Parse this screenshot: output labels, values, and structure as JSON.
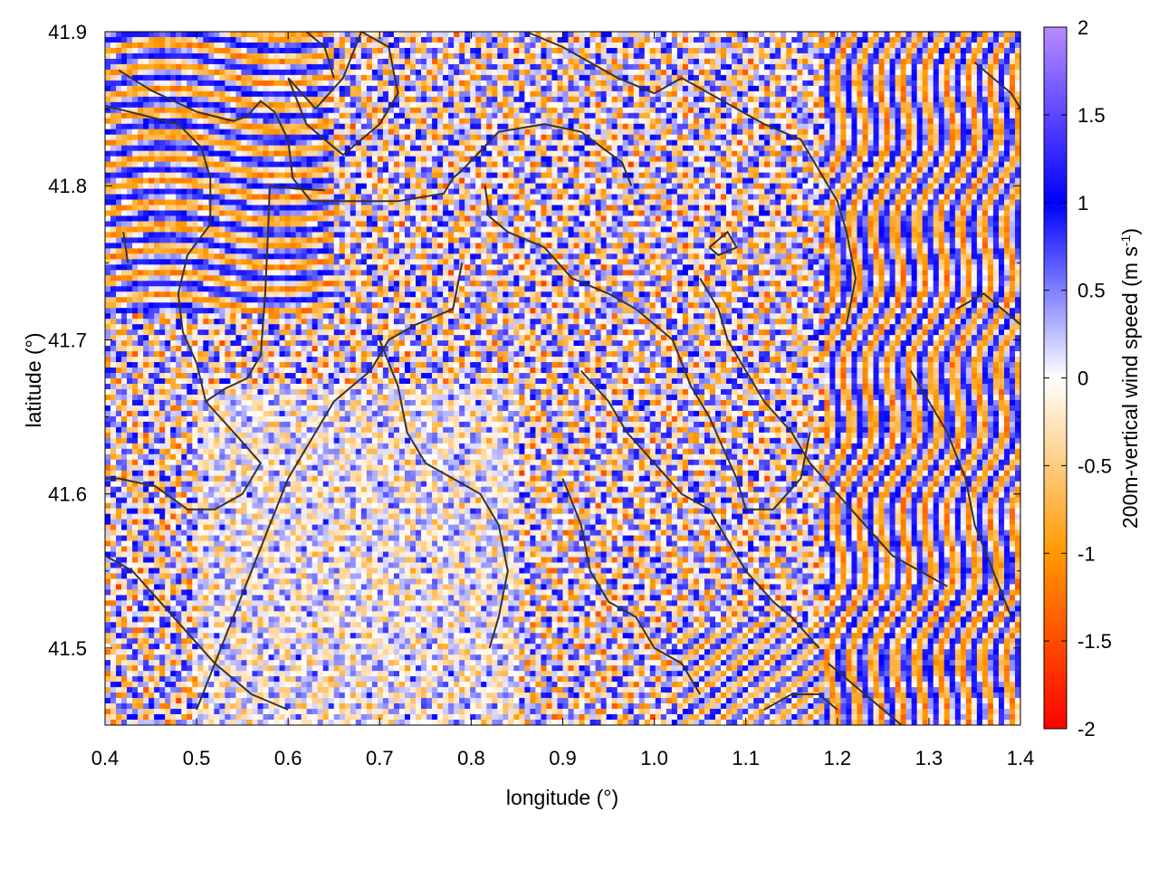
{
  "chart_data": {
    "type": "heatmap",
    "title": "",
    "xlabel": "longitude (°)",
    "ylabel": "latitude (°)",
    "colorbar_label_main": "200m-vertical wind speed (m s",
    "colorbar_label_exp": "-1",
    "colorbar_label_close": ")",
    "xlim": [
      0.4,
      1.4
    ],
    "ylim": [
      41.45,
      41.9
    ],
    "zlim": [
      -2,
      2
    ],
    "x_ticks": [
      0.4,
      0.5,
      0.6,
      0.7,
      0.8,
      0.9,
      1.0,
      1.1,
      1.2,
      1.3,
      1.4
    ],
    "x_tick_labels": [
      "0.4",
      "0.5",
      "0.6",
      "0.7",
      "0.8",
      "0.9",
      "1.0",
      "1.1",
      "1.2",
      "1.3",
      "1.4"
    ],
    "y_ticks": [
      41.5,
      41.6,
      41.7,
      41.8,
      41.9
    ],
    "y_tick_labels": [
      "41.5",
      "41.6",
      "41.7",
      "41.8",
      "41.9"
    ],
    "colorbar_ticks": [
      2,
      1.5,
      1,
      0.5,
      0,
      -0.5,
      -1,
      -1.5,
      -2
    ],
    "colorbar_tick_labels": [
      "2",
      "1.5",
      "1",
      "0.5",
      "0",
      "-0.5",
      "-1",
      "-1.5",
      "-2"
    ],
    "colorscale": [
      {
        "value": -2,
        "color": "#ff0000"
      },
      {
        "value": -1,
        "color": "#ff9900"
      },
      {
        "value": 0,
        "color": "#ffffff"
      },
      {
        "value": 1,
        "color": "#0000ff"
      },
      {
        "value": 2,
        "color": "#b88cff"
      }
    ],
    "grid": false,
    "legend": "colorbar-right",
    "boundary_color": "#333333",
    "boundaries": [
      [
        [
          0.415,
          41.875
        ],
        [
          0.45,
          41.862
        ],
        [
          0.5,
          41.848
        ],
        [
          0.54,
          41.842
        ],
        [
          0.555,
          41.845
        ],
        [
          0.57,
          41.855
        ],
        [
          0.585,
          41.848
        ],
        [
          0.6,
          41.83
        ],
        [
          0.605,
          41.805
        ],
        [
          0.625,
          41.79
        ],
        [
          0.67,
          41.79
        ],
        [
          0.72,
          41.79
        ],
        [
          0.77,
          41.795
        ],
        [
          0.78,
          41.805
        ],
        [
          0.79,
          41.81
        ],
        [
          0.83,
          41.835
        ],
        [
          0.88,
          41.84
        ],
        [
          0.92,
          41.835
        ],
        [
          0.965,
          41.815
        ],
        [
          0.975,
          41.8
        ]
      ],
      [
        [
          0.4,
          41.852
        ],
        [
          0.44,
          41.846
        ],
        [
          0.48,
          41.84
        ],
        [
          0.505,
          41.825
        ],
        [
          0.515,
          41.805
        ],
        [
          0.515,
          41.775
        ],
        [
          0.49,
          41.755
        ],
        [
          0.48,
          41.73
        ],
        [
          0.485,
          41.705
        ],
        [
          0.5,
          41.685
        ],
        [
          0.51,
          41.66
        ],
        [
          0.53,
          41.668
        ],
        [
          0.555,
          41.675
        ],
        [
          0.57,
          41.69
        ],
        [
          0.575,
          41.73
        ],
        [
          0.578,
          41.77
        ],
        [
          0.58,
          41.8
        ]
      ],
      [
        [
          0.58,
          41.8
        ],
        [
          0.61,
          41.798
        ],
        [
          0.64,
          41.797
        ]
      ],
      [
        [
          0.51,
          41.66
        ],
        [
          0.545,
          41.637
        ],
        [
          0.57,
          41.62
        ],
        [
          0.55,
          41.6
        ],
        [
          0.52,
          41.59
        ],
        [
          0.49,
          41.59
        ],
        [
          0.455,
          41.605
        ],
        [
          0.415,
          41.61
        ],
        [
          0.4,
          41.61
        ]
      ],
      [
        [
          0.6,
          41.87
        ],
        [
          0.63,
          41.85
        ],
        [
          0.66,
          41.87
        ],
        [
          0.68,
          41.9
        ],
        [
          0.71,
          41.89
        ],
        [
          0.72,
          41.86
        ],
        [
          0.7,
          41.84
        ],
        [
          0.68,
          41.83
        ],
        [
          0.66,
          41.82
        ],
        [
          0.64,
          41.83
        ],
        [
          0.62,
          41.84
        ],
        [
          0.6,
          41.87
        ]
      ],
      [
        [
          0.62,
          41.9
        ],
        [
          0.64,
          41.89
        ],
        [
          0.65,
          41.87
        ]
      ],
      [
        [
          0.815,
          41.8
        ],
        [
          0.82,
          41.78
        ],
        [
          0.84,
          41.77
        ],
        [
          0.88,
          41.76
        ],
        [
          0.91,
          41.74
        ],
        [
          0.95,
          41.73
        ],
        [
          0.98,
          41.72
        ],
        [
          1.02,
          41.7
        ],
        [
          1.04,
          41.67
        ],
        [
          1.06,
          41.65
        ],
        [
          1.075,
          41.63
        ],
        [
          1.09,
          41.61
        ],
        [
          1.1,
          41.59
        ],
        [
          1.13,
          41.59
        ],
        [
          1.16,
          41.61
        ],
        [
          1.17,
          41.64
        ]
      ],
      [
        [
          0.86,
          41.9
        ],
        [
          0.9,
          41.89
        ],
        [
          0.93,
          41.88
        ],
        [
          0.96,
          41.87
        ],
        [
          1.0,
          41.86
        ],
        [
          1.03,
          41.87
        ],
        [
          1.06,
          41.86
        ],
        [
          1.09,
          41.85
        ],
        [
          1.12,
          41.84
        ],
        [
          1.16,
          41.83
        ],
        [
          1.18,
          41.81
        ],
        [
          1.2,
          41.79
        ],
        [
          1.21,
          41.77
        ],
        [
          1.22,
          41.74
        ],
        [
          1.21,
          41.71
        ]
      ],
      [
        [
          0.79,
          41.75
        ],
        [
          0.78,
          41.72
        ],
        [
          0.74,
          41.71
        ],
        [
          0.71,
          41.7
        ],
        [
          0.69,
          41.68
        ],
        [
          0.65,
          41.66
        ],
        [
          0.62,
          41.63
        ],
        [
          0.6,
          41.61
        ],
        [
          0.58,
          41.58
        ],
        [
          0.56,
          41.55
        ],
        [
          0.54,
          41.52
        ],
        [
          0.52,
          41.49
        ],
        [
          0.5,
          41.46
        ]
      ],
      [
        [
          0.7,
          41.7
        ],
        [
          0.72,
          41.67
        ],
        [
          0.73,
          41.64
        ],
        [
          0.75,
          41.62
        ],
        [
          0.78,
          41.61
        ],
        [
          0.81,
          41.6
        ],
        [
          0.83,
          41.58
        ],
        [
          0.84,
          41.55
        ],
        [
          0.83,
          41.52
        ],
        [
          0.82,
          41.5
        ]
      ],
      [
        [
          0.9,
          41.61
        ],
        [
          0.92,
          41.58
        ],
        [
          0.93,
          41.55
        ],
        [
          0.95,
          41.53
        ],
        [
          0.98,
          41.52
        ],
        [
          1.0,
          41.5
        ],
        [
          1.03,
          41.49
        ],
        [
          1.05,
          41.47
        ]
      ],
      [
        [
          0.92,
          41.68
        ],
        [
          0.95,
          41.66
        ],
        [
          0.97,
          41.64
        ],
        [
          1.0,
          41.62
        ],
        [
          1.03,
          41.6
        ],
        [
          1.06,
          41.59
        ],
        [
          1.08,
          41.57
        ],
        [
          1.1,
          41.55
        ],
        [
          1.13,
          41.53
        ],
        [
          1.15,
          41.52
        ],
        [
          1.18,
          41.5
        ]
      ],
      [
        [
          1.06,
          41.76
        ],
        [
          1.08,
          41.77
        ],
        [
          1.09,
          41.76
        ],
        [
          1.07,
          41.755
        ],
        [
          1.06,
          41.76
        ]
      ],
      [
        [
          1.05,
          41.74
        ],
        [
          1.07,
          41.72
        ],
        [
          1.08,
          41.7
        ],
        [
          1.1,
          41.68
        ],
        [
          1.12,
          41.66
        ],
        [
          1.15,
          41.64
        ],
        [
          1.17,
          41.62
        ],
        [
          1.2,
          41.6
        ],
        [
          1.23,
          41.58
        ],
        [
          1.26,
          41.56
        ],
        [
          1.29,
          41.55
        ],
        [
          1.32,
          41.54
        ]
      ],
      [
        [
          1.33,
          41.72
        ],
        [
          1.36,
          41.73
        ],
        [
          1.38,
          41.72
        ],
        [
          1.4,
          41.71
        ]
      ],
      [
        [
          1.28,
          41.68
        ],
        [
          1.3,
          41.66
        ],
        [
          1.32,
          41.64
        ],
        [
          1.34,
          41.61
        ],
        [
          1.35,
          41.58
        ],
        [
          1.37,
          41.55
        ],
        [
          1.39,
          41.52
        ]
      ],
      [
        [
          1.19,
          41.49
        ],
        [
          1.21,
          41.48
        ],
        [
          1.23,
          41.47
        ],
        [
          1.25,
          41.46
        ],
        [
          1.27,
          41.45
        ]
      ],
      [
        [
          1.12,
          41.46
        ],
        [
          1.15,
          41.47
        ],
        [
          1.18,
          41.47
        ],
        [
          1.2,
          41.46
        ]
      ],
      [
        [
          1.35,
          41.88
        ],
        [
          1.37,
          41.87
        ],
        [
          1.39,
          41.86
        ],
        [
          1.4,
          41.85
        ]
      ],
      [
        [
          0.42,
          41.77
        ],
        [
          0.425,
          41.75
        ]
      ],
      [
        [
          0.4,
          41.56
        ],
        [
          0.43,
          41.55
        ],
        [
          0.46,
          41.53
        ],
        [
          0.49,
          41.51
        ],
        [
          0.52,
          41.49
        ],
        [
          0.56,
          41.47
        ],
        [
          0.6,
          41.46
        ]
      ]
    ]
  }
}
